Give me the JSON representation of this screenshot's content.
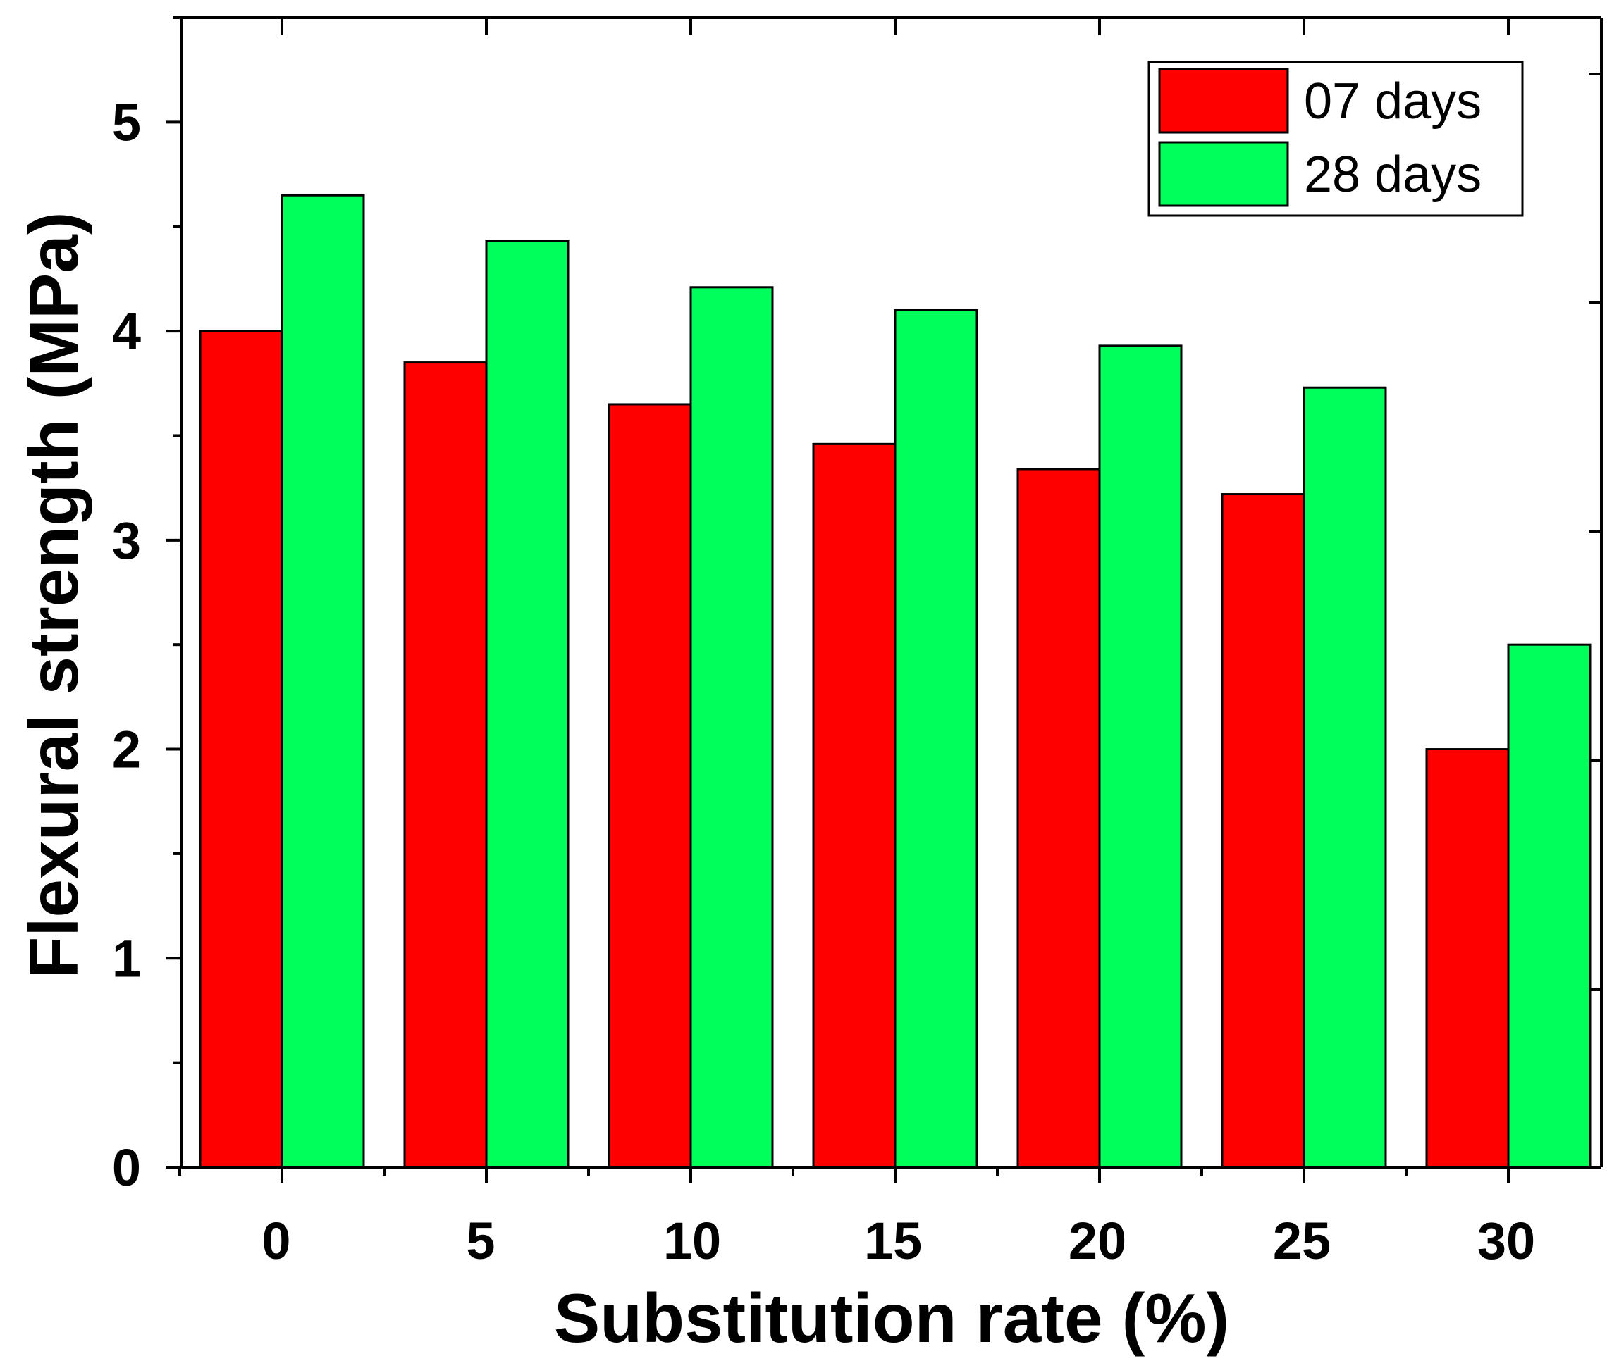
{
  "chart_data": {
    "type": "bar",
    "title": "",
    "xlabel": "Substitution rate (%)",
    "ylabel": "Flexural strength (MPa)",
    "categories": [
      "0",
      "5",
      "10",
      "15",
      "20",
      "25",
      "30"
    ],
    "series": [
      {
        "name": "07 days",
        "color": "#ff0000",
        "values": [
          4.0,
          3.85,
          3.65,
          3.46,
          3.34,
          3.22,
          2.0
        ]
      },
      {
        "name": "28 days",
        "color": "#00ff5a",
        "values": [
          4.65,
          4.43,
          4.21,
          4.1,
          3.93,
          3.73,
          2.5
        ]
      }
    ],
    "ylim": [
      0,
      5.5
    ],
    "yticks": [
      "0",
      "1",
      "2",
      "3",
      "4",
      "5"
    ],
    "grid": false,
    "legend_position": "top-right"
  }
}
